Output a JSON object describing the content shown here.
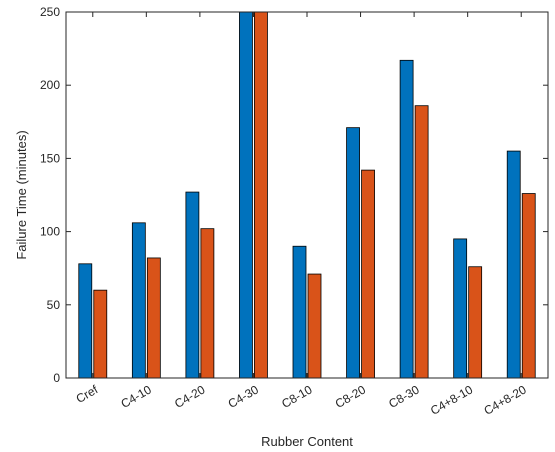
{
  "chart_data": {
    "type": "bar",
    "title": "",
    "xlabel": "Rubber Content",
    "ylabel": "Failure Time (minutes)",
    "categories": [
      "Cref",
      "C4-10",
      "C4-20",
      "C4-30",
      "C8-10",
      "C8-20",
      "C8-30",
      "C4+8-10",
      "C4+8-20"
    ],
    "series": [
      {
        "values": [
          78,
          106,
          127,
          250,
          90,
          171,
          217,
          95,
          155
        ],
        "color": "#0072BD"
      },
      {
        "values": [
          60,
          82,
          102,
          250,
          71,
          142,
          186,
          76,
          126
        ],
        "color": "#D95319"
      }
    ],
    "ylim": [
      0,
      250
    ],
    "yticks": [
      0,
      50,
      100,
      150,
      200,
      250
    ],
    "grid": false,
    "legend": "none"
  }
}
